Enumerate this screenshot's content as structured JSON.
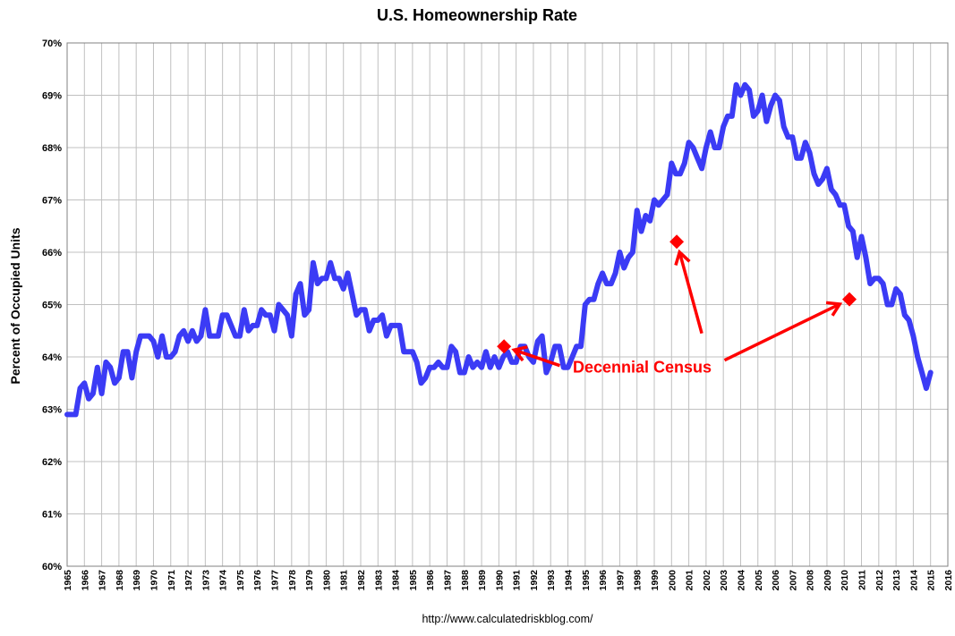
{
  "chart_data": {
    "type": "line",
    "title": "U.S. Homeownership Rate",
    "ylabel": "Percent of Occupied Units",
    "xlabel": "",
    "source": "http://www.calculatedriskblog.com/",
    "ylim": [
      60,
      70
    ],
    "yticks": [
      "60%",
      "61%",
      "62%",
      "63%",
      "64%",
      "65%",
      "66%",
      "67%",
      "68%",
      "69%",
      "70%"
    ],
    "xlim": [
      1965,
      2016
    ],
    "xticks": [
      "1965",
      "1966",
      "1967",
      "1968",
      "1969",
      "1970",
      "1971",
      "1972",
      "1973",
      "1974",
      "1975",
      "1976",
      "1977",
      "1978",
      "1979",
      "1980",
      "1981",
      "1982",
      "1983",
      "1984",
      "1985",
      "1986",
      "1987",
      "1988",
      "1989",
      "1990",
      "1991",
      "1992",
      "1993",
      "1994",
      "1995",
      "1996",
      "1997",
      "1998",
      "1999",
      "2000",
      "2001",
      "2002",
      "2003",
      "2004",
      "2005",
      "2006",
      "2007",
      "2008",
      "2009",
      "2010",
      "2011",
      "2012",
      "2013",
      "2014",
      "2015",
      "2016"
    ],
    "grid": true,
    "series": [
      {
        "values": [
          [
            1965.0,
            62.9
          ],
          [
            1965.25,
            62.9
          ],
          [
            1965.5,
            62.9
          ],
          [
            1965.75,
            63.4
          ],
          [
            1966.0,
            63.5
          ],
          [
            1966.25,
            63.2
          ],
          [
            1966.5,
            63.3
          ],
          [
            1966.75,
            63.8
          ],
          [
            1967.0,
            63.3
          ],
          [
            1967.25,
            63.9
          ],
          [
            1967.5,
            63.8
          ],
          [
            1967.75,
            63.5
          ],
          [
            1968.0,
            63.6
          ],
          [
            1968.25,
            64.1
          ],
          [
            1968.5,
            64.1
          ],
          [
            1968.75,
            63.6
          ],
          [
            1969.0,
            64.1
          ],
          [
            1969.25,
            64.4
          ],
          [
            1969.5,
            64.4
          ],
          [
            1969.75,
            64.4
          ],
          [
            1970.0,
            64.3
          ],
          [
            1970.25,
            64.0
          ],
          [
            1970.5,
            64.4
          ],
          [
            1970.75,
            64.0
          ],
          [
            1971.0,
            64.0
          ],
          [
            1971.25,
            64.1
          ],
          [
            1971.5,
            64.4
          ],
          [
            1971.75,
            64.5
          ],
          [
            1972.0,
            64.3
          ],
          [
            1972.25,
            64.5
          ],
          [
            1972.5,
            64.3
          ],
          [
            1972.75,
            64.4
          ],
          [
            1973.0,
            64.9
          ],
          [
            1973.25,
            64.4
          ],
          [
            1973.5,
            64.4
          ],
          [
            1973.75,
            64.4
          ],
          [
            1974.0,
            64.8
          ],
          [
            1974.25,
            64.8
          ],
          [
            1974.5,
            64.6
          ],
          [
            1974.75,
            64.4
          ],
          [
            1975.0,
            64.4
          ],
          [
            1975.25,
            64.9
          ],
          [
            1975.5,
            64.5
          ],
          [
            1975.75,
            64.6
          ],
          [
            1976.0,
            64.6
          ],
          [
            1976.25,
            64.9
          ],
          [
            1976.5,
            64.8
          ],
          [
            1976.75,
            64.8
          ],
          [
            1977.0,
            64.5
          ],
          [
            1977.25,
            65.0
          ],
          [
            1977.5,
            64.9
          ],
          [
            1977.75,
            64.8
          ],
          [
            1978.0,
            64.4
          ],
          [
            1978.25,
            65.2
          ],
          [
            1978.5,
            65.4
          ],
          [
            1978.75,
            64.8
          ],
          [
            1979.0,
            64.9
          ],
          [
            1979.25,
            65.8
          ],
          [
            1979.5,
            65.4
          ],
          [
            1979.75,
            65.5
          ],
          [
            1980.0,
            65.5
          ],
          [
            1980.25,
            65.8
          ],
          [
            1980.5,
            65.5
          ],
          [
            1980.75,
            65.5
          ],
          [
            1981.0,
            65.3
          ],
          [
            1981.25,
            65.6
          ],
          [
            1981.5,
            65.2
          ],
          [
            1981.75,
            64.8
          ],
          [
            1982.0,
            64.9
          ],
          [
            1982.25,
            64.9
          ],
          [
            1982.5,
            64.5
          ],
          [
            1982.75,
            64.7
          ],
          [
            1983.0,
            64.7
          ],
          [
            1983.25,
            64.8
          ],
          [
            1983.5,
            64.4
          ],
          [
            1983.75,
            64.6
          ],
          [
            1984.0,
            64.6
          ],
          [
            1984.25,
            64.6
          ],
          [
            1984.5,
            64.1
          ],
          [
            1984.75,
            64.1
          ],
          [
            1985.0,
            64.1
          ],
          [
            1985.25,
            63.9
          ],
          [
            1985.5,
            63.5
          ],
          [
            1985.75,
            63.6
          ],
          [
            1986.0,
            63.8
          ],
          [
            1986.25,
            63.8
          ],
          [
            1986.5,
            63.9
          ],
          [
            1986.75,
            63.8
          ],
          [
            1987.0,
            63.8
          ],
          [
            1987.25,
            64.2
          ],
          [
            1987.5,
            64.1
          ],
          [
            1987.75,
            63.7
          ],
          [
            1988.0,
            63.7
          ],
          [
            1988.25,
            64.0
          ],
          [
            1988.5,
            63.8
          ],
          [
            1988.75,
            63.9
          ],
          [
            1989.0,
            63.8
          ],
          [
            1989.25,
            64.1
          ],
          [
            1989.5,
            63.8
          ],
          [
            1989.75,
            64.0
          ],
          [
            1990.0,
            63.8
          ],
          [
            1990.25,
            64.0
          ],
          [
            1990.5,
            64.1
          ],
          [
            1990.75,
            63.9
          ],
          [
            1991.0,
            63.9
          ],
          [
            1991.25,
            64.2
          ],
          [
            1991.5,
            64.2
          ],
          [
            1991.75,
            64.0
          ],
          [
            1992.0,
            63.9
          ],
          [
            1992.25,
            64.3
          ],
          [
            1992.5,
            64.4
          ],
          [
            1992.75,
            63.7
          ],
          [
            1993.0,
            63.9
          ],
          [
            1993.25,
            64.2
          ],
          [
            1993.5,
            64.2
          ],
          [
            1993.75,
            63.8
          ],
          [
            1994.0,
            63.8
          ],
          [
            1994.25,
            64.0
          ],
          [
            1994.5,
            64.2
          ],
          [
            1994.75,
            64.2
          ],
          [
            1995.0,
            65.0
          ],
          [
            1995.25,
            65.1
          ],
          [
            1995.5,
            65.1
          ],
          [
            1995.75,
            65.4
          ],
          [
            1996.0,
            65.6
          ],
          [
            1996.25,
            65.4
          ],
          [
            1996.5,
            65.4
          ],
          [
            1996.75,
            65.6
          ],
          [
            1997.0,
            66.0
          ],
          [
            1997.25,
            65.7
          ],
          [
            1997.5,
            65.9
          ],
          [
            1997.75,
            66.0
          ],
          [
            1998.0,
            66.8
          ],
          [
            1998.25,
            66.4
          ],
          [
            1998.5,
            66.7
          ],
          [
            1998.75,
            66.6
          ],
          [
            1999.0,
            67.0
          ],
          [
            1999.25,
            66.9
          ],
          [
            1999.5,
            67.0
          ],
          [
            1999.75,
            67.1
          ],
          [
            2000.0,
            67.7
          ],
          [
            2000.25,
            67.5
          ],
          [
            2000.5,
            67.5
          ],
          [
            2000.75,
            67.7
          ],
          [
            2001.0,
            68.1
          ],
          [
            2001.25,
            68.0
          ],
          [
            2001.5,
            67.8
          ],
          [
            2001.75,
            67.6
          ],
          [
            2002.0,
            68.0
          ],
          [
            2002.25,
            68.3
          ],
          [
            2002.5,
            68.0
          ],
          [
            2002.75,
            68.0
          ],
          [
            2003.0,
            68.4
          ],
          [
            2003.25,
            68.6
          ],
          [
            2003.5,
            68.6
          ],
          [
            2003.75,
            69.2
          ],
          [
            2004.0,
            69.0
          ],
          [
            2004.25,
            69.2
          ],
          [
            2004.5,
            69.1
          ],
          [
            2004.75,
            68.6
          ],
          [
            2005.0,
            68.7
          ],
          [
            2005.25,
            69.0
          ],
          [
            2005.5,
            68.5
          ],
          [
            2005.75,
            68.8
          ],
          [
            2006.0,
            69.0
          ],
          [
            2006.25,
            68.9
          ],
          [
            2006.5,
            68.4
          ],
          [
            2006.75,
            68.2
          ],
          [
            2007.0,
            68.2
          ],
          [
            2007.25,
            67.8
          ],
          [
            2007.5,
            67.8
          ],
          [
            2007.75,
            68.1
          ],
          [
            2008.0,
            67.9
          ],
          [
            2008.25,
            67.5
          ],
          [
            2008.5,
            67.3
          ],
          [
            2008.75,
            67.4
          ],
          [
            2009.0,
            67.6
          ],
          [
            2009.25,
            67.2
          ],
          [
            2009.5,
            67.1
          ],
          [
            2009.75,
            66.9
          ],
          [
            2010.0,
            66.9
          ],
          [
            2010.25,
            66.5
          ],
          [
            2010.5,
            66.4
          ],
          [
            2010.75,
            65.9
          ],
          [
            2011.0,
            66.3
          ],
          [
            2011.25,
            65.9
          ],
          [
            2011.5,
            65.4
          ],
          [
            2011.75,
            65.5
          ],
          [
            2012.0,
            65.5
          ],
          [
            2012.25,
            65.4
          ],
          [
            2012.5,
            65.0
          ],
          [
            2012.75,
            65.0
          ],
          [
            2013.0,
            65.3
          ],
          [
            2013.25,
            65.2
          ],
          [
            2013.5,
            64.8
          ],
          [
            2013.75,
            64.7
          ],
          [
            2014.0,
            64.4
          ],
          [
            2014.25,
            64.0
          ],
          [
            2014.5,
            63.7
          ],
          [
            2014.75,
            63.4
          ],
          [
            2015.0,
            63.7
          ]
        ]
      }
    ],
    "markers": [
      {
        "x": 1990.3,
        "y": 64.2
      },
      {
        "x": 2000.3,
        "y": 66.2
      },
      {
        "x": 2010.3,
        "y": 65.1
      }
    ],
    "annotations": [
      {
        "text": "Decennial Census",
        "x": 1998.3,
        "y": 63.8
      }
    ],
    "colors": {
      "line": "#3b3bf5",
      "marker": "#ff0000",
      "arrow": "#ff0000",
      "grid": "#c0c0c0"
    }
  }
}
